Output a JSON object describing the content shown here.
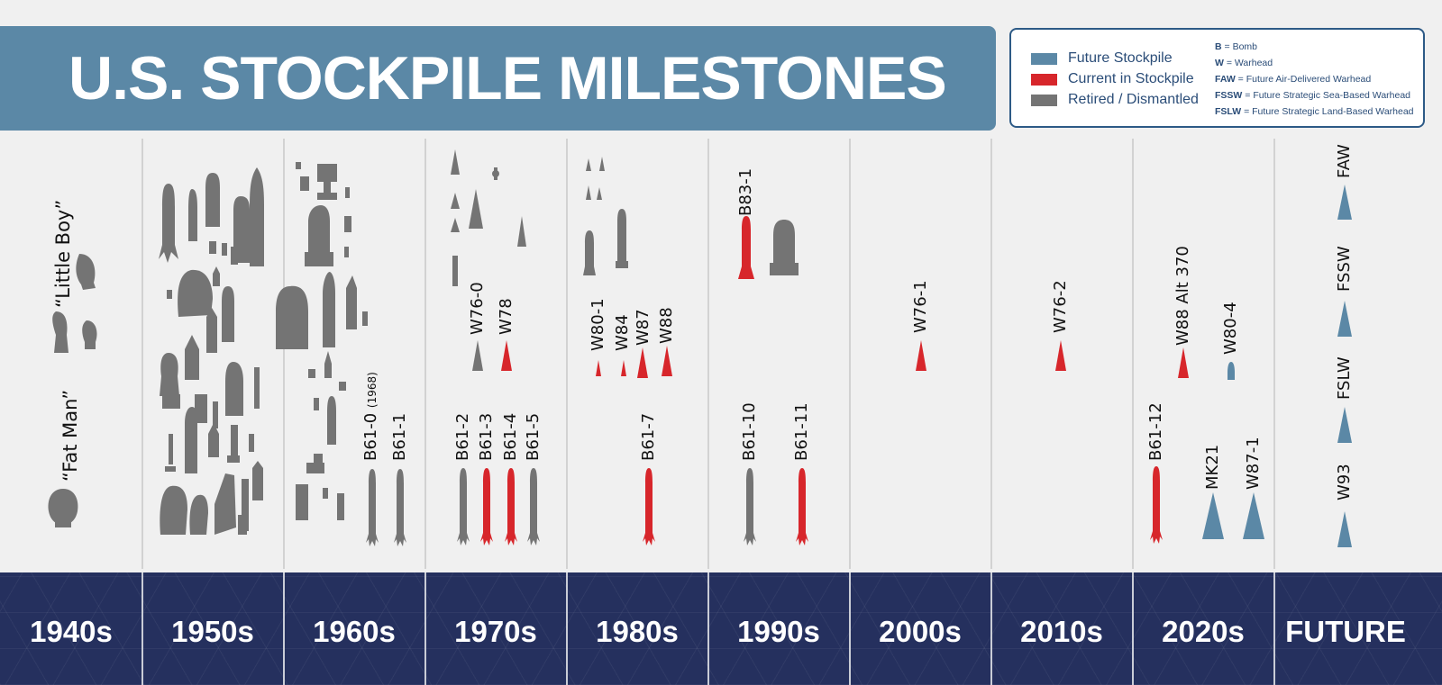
{
  "title": "U.S. STOCKPILE MILESTONES",
  "colors": {
    "future": "#5b88a6",
    "current": "#d7262b",
    "retired": "#747474",
    "banner": "#5b88a6",
    "footer": "#25305e"
  },
  "legend": {
    "items": [
      {
        "label": "Future Stockpile",
        "color": "#5b88a6"
      },
      {
        "label": "Current in Stockpile",
        "color": "#d7262b"
      },
      {
        "label": "Retired / Dismantled",
        "color": "#747474"
      }
    ],
    "abbreviations": [
      {
        "code": "B",
        "meaning": "= Bomb"
      },
      {
        "code": "W",
        "meaning": "= Warhead"
      },
      {
        "code": "FAW",
        "meaning": "= Future Air-Delivered Warhead"
      },
      {
        "code": "FSSW",
        "meaning": "= Future Strategic Sea-Based Warhead"
      },
      {
        "code": "FSLW",
        "meaning": "= Future Strategic Land-Based Warhead"
      }
    ]
  },
  "decades": [
    "1940s",
    "1950s",
    "1960s",
    "1970s",
    "1980s",
    "1990s",
    "2000s",
    "2010s",
    "2020s",
    "FUTURE"
  ],
  "labels": {
    "fat_man": "“Fat Man”",
    "little_boy": "“Little Boy”",
    "b61_0": "B61-0",
    "b61_0_year": "(1968)",
    "b61_1": "B61-1",
    "w76_0": "W76-0",
    "w78": "W78",
    "b61_2": "B61-2",
    "b61_3": "B61-3",
    "b61_4": "B61-4",
    "b61_5": "B61-5",
    "w80_1": "W80-1",
    "w84": "W84",
    "w87": "W87",
    "w88": "W88",
    "b61_7": "B61-7",
    "b83_1": "B83-1",
    "b61_10": "B61-10",
    "b61_11": "B61-11",
    "w76_1": "W76-1",
    "w76_2": "W76-2",
    "w88_alt_370": "W88 Alt 370",
    "w80_4": "W80-4",
    "b61_12": "B61-12",
    "mk21": "MK21",
    "w87_1": "W87-1",
    "faw": "FAW",
    "fssw": "FSSW",
    "fslw": "FSLW",
    "w93": "W93"
  }
}
